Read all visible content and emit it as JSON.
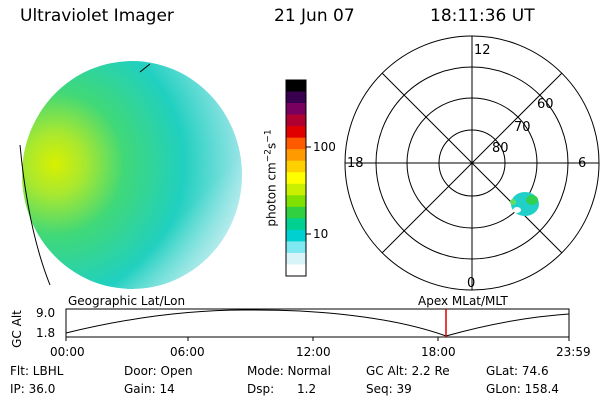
{
  "header": {
    "instrument": "Ultraviolet Imager",
    "date": "21 Jun 07",
    "time": "18:11:36 UT"
  },
  "colorbar": {
    "unit_label": "photon cm",
    "unit_exp1": "−2",
    "unit_mid": "s",
    "unit_exp2": "−1",
    "tick_100": "100",
    "tick_10": "10",
    "colors": [
      "#000000",
      "#3a0050",
      "#7a0060",
      "#b00030",
      "#e00000",
      "#ff5a00",
      "#ff9a00",
      "#ffd000",
      "#ffff00",
      "#c8f000",
      "#80e000",
      "#30d040",
      "#00d090",
      "#00d0d0",
      "#80e8f0",
      "#d8f4f8",
      "#ffffff"
    ]
  },
  "polar": {
    "mlt_12": "12",
    "mlt_18": "18",
    "mlt_6": "6",
    "mlt_0": "0",
    "lat_60": "60",
    "lat_70": "70",
    "lat_80": "80"
  },
  "timeline": {
    "left_title": "Geographic Lat/Lon",
    "right_title": "Apex  MLat/MLT",
    "y_label": "GC Alt",
    "y_top": "9.0",
    "y_bottom": "1.8",
    "ticks": [
      "00:00",
      "06:00",
      "12:00",
      "18:00",
      "23:59"
    ],
    "marker_color": "#e00000"
  },
  "info": {
    "filter": "Flt: LBHL",
    "door": "Door: Open",
    "mode": "Mode: Normal",
    "gc_alt": "GC Alt: 2.2 Re",
    "glat": "GLat:  74.6",
    "ip": "IP: 36.0",
    "gain": "Gain: 14",
    "dsp": "Dsp:      1.2",
    "seq": "Seq: 39",
    "glon": "GLon: 158.4"
  }
}
